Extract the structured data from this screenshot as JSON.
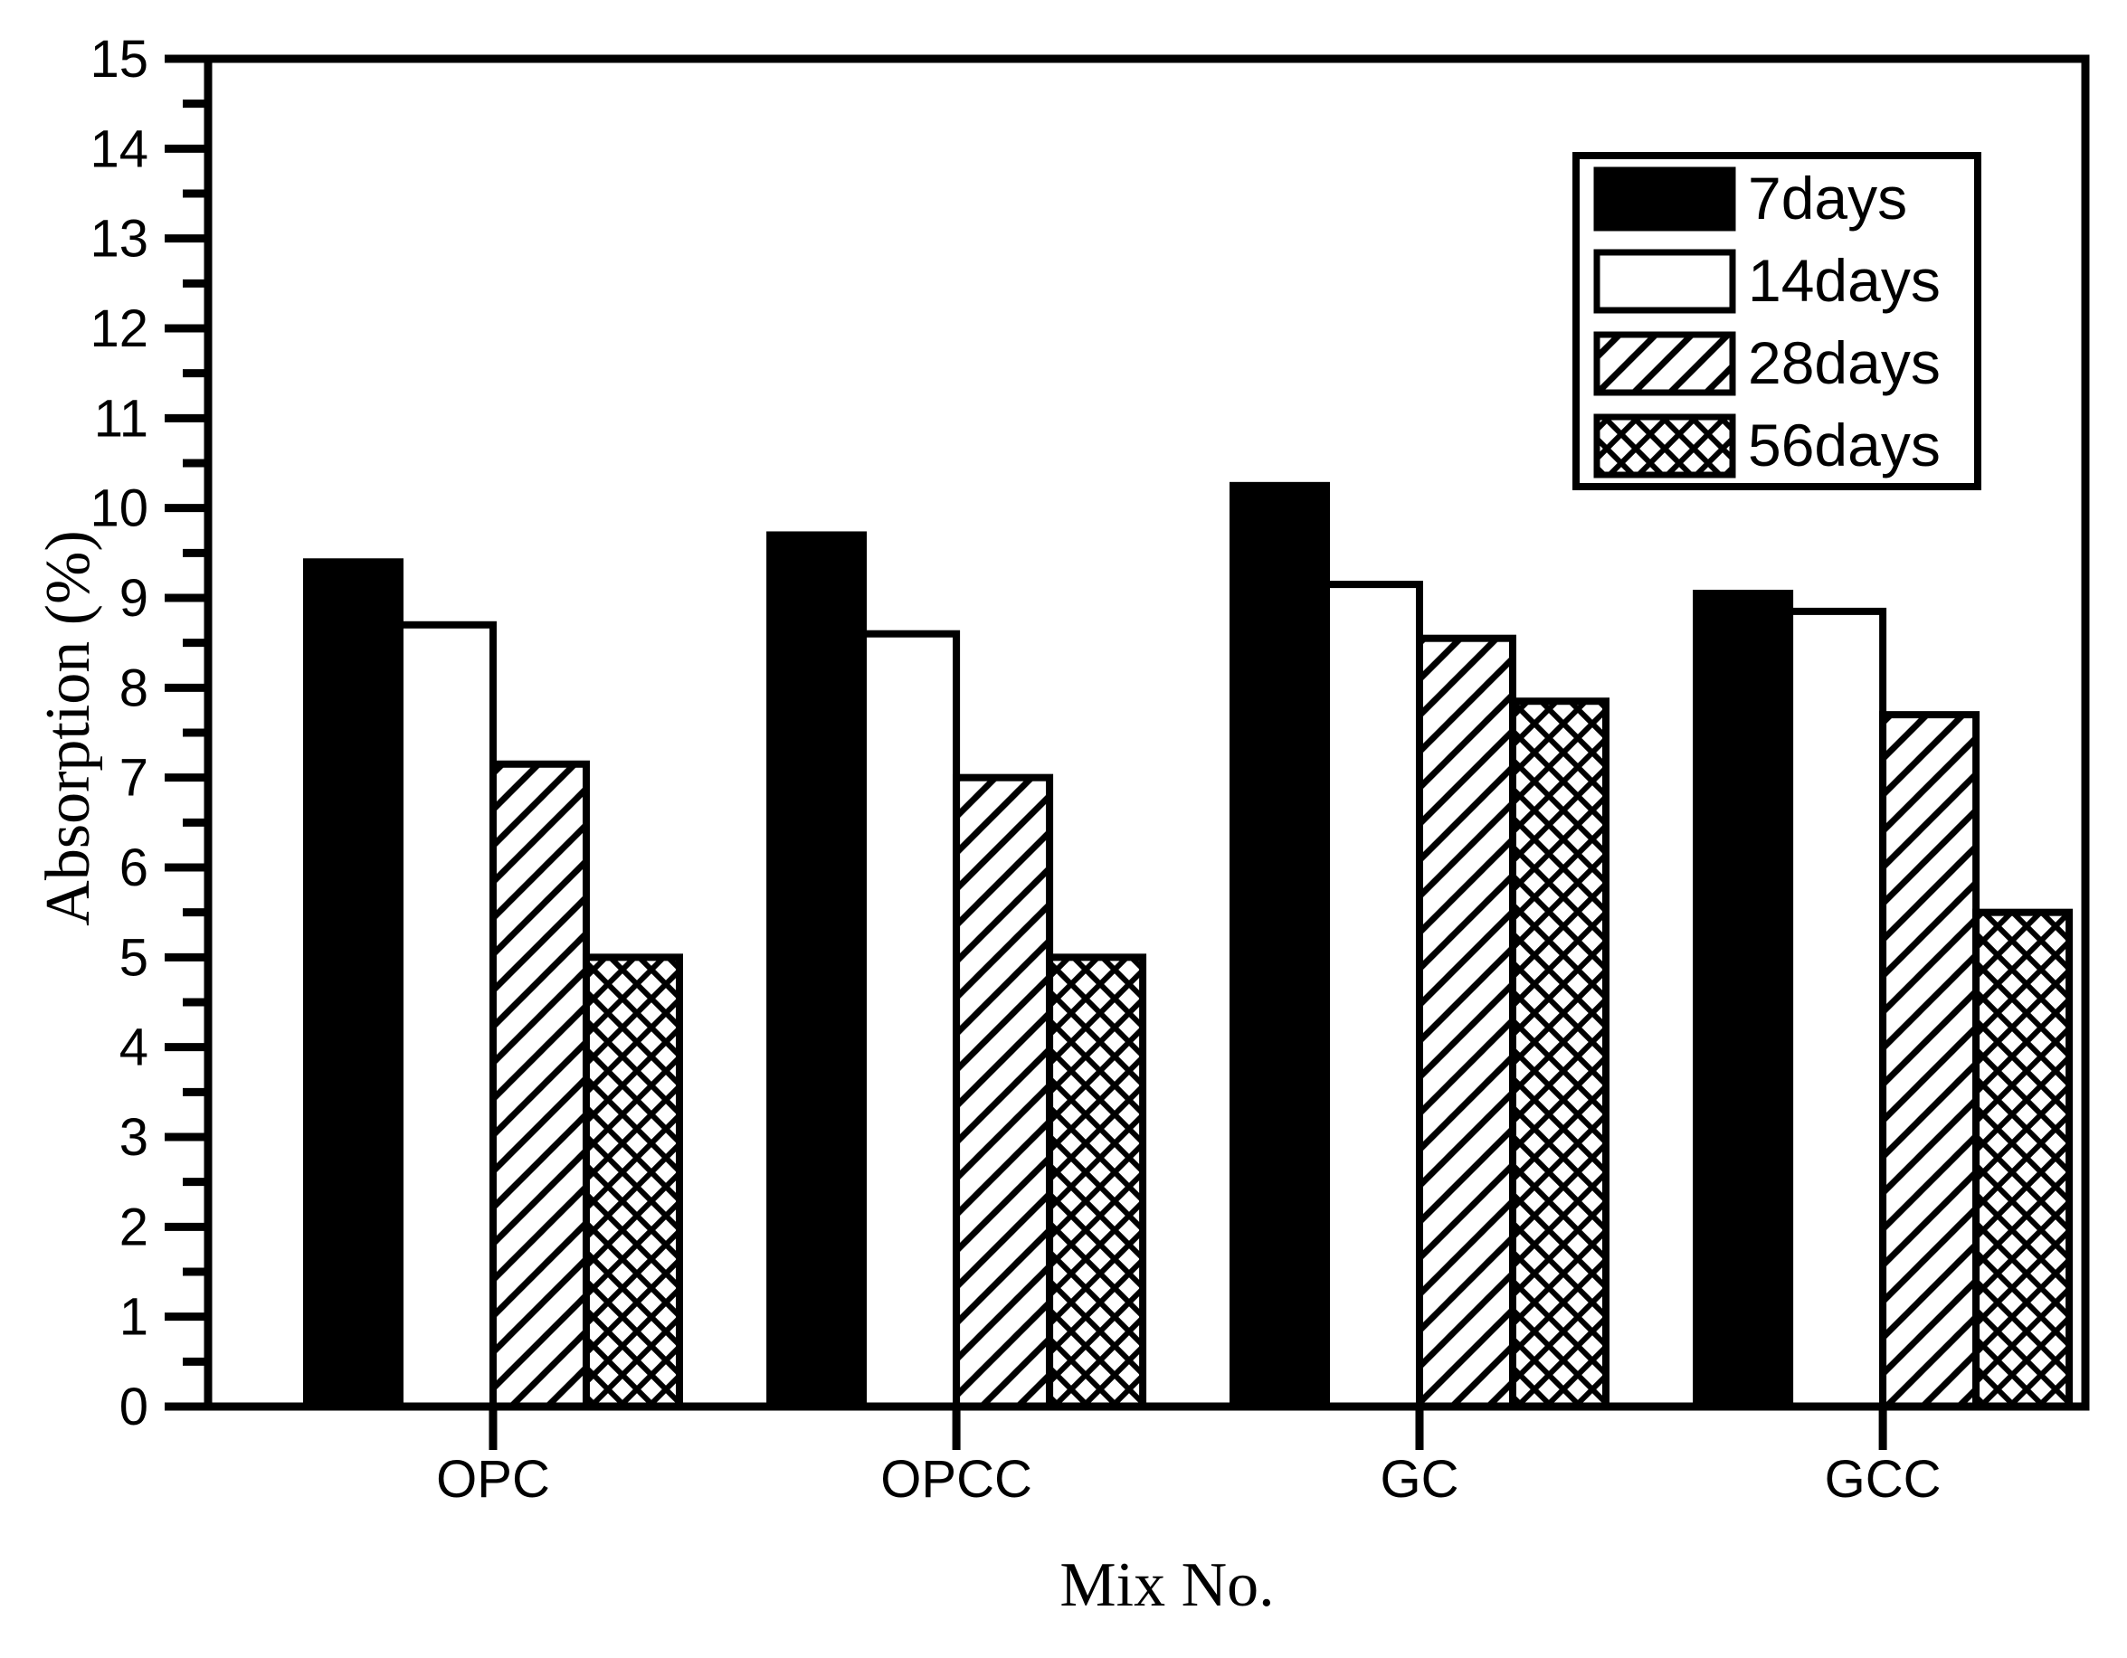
{
  "figure": {
    "background_color": "#ffffff",
    "foreground_color": "#000000"
  },
  "chart_data": {
    "type": "bar",
    "title": "",
    "xlabel": "Mix No.",
    "ylabel": "Absorption (%)",
    "categories": [
      "OPC",
      "OPCC",
      "GC",
      "GCC"
    ],
    "series": [
      {
        "name": "7days",
        "pattern": "solid-black",
        "values": [
          9.4,
          9.7,
          10.25,
          9.05
        ]
      },
      {
        "name": "14days",
        "pattern": "open-white",
        "values": [
          8.7,
          8.6,
          9.15,
          8.85
        ]
      },
      {
        "name": "28days",
        "pattern": "diagonal-hatch",
        "values": [
          7.15,
          7.0,
          8.55,
          7.7
        ]
      },
      {
        "name": "56days",
        "pattern": "cross-hatch",
        "values": [
          5.0,
          5.0,
          7.85,
          5.5
        ]
      }
    ],
    "ylim": [
      0,
      15
    ],
    "y_major_step": 1,
    "y_minor_step": 0.5,
    "y_tick_labels": [
      "0",
      "1",
      "2",
      "3",
      "4",
      "5",
      "6",
      "7",
      "8",
      "9",
      "10",
      "11",
      "12",
      "13",
      "14",
      "15"
    ],
    "grid": false,
    "legend": {
      "position": "top-right-inside",
      "entries": [
        "7days",
        "14days",
        "28days",
        "56days"
      ]
    }
  }
}
